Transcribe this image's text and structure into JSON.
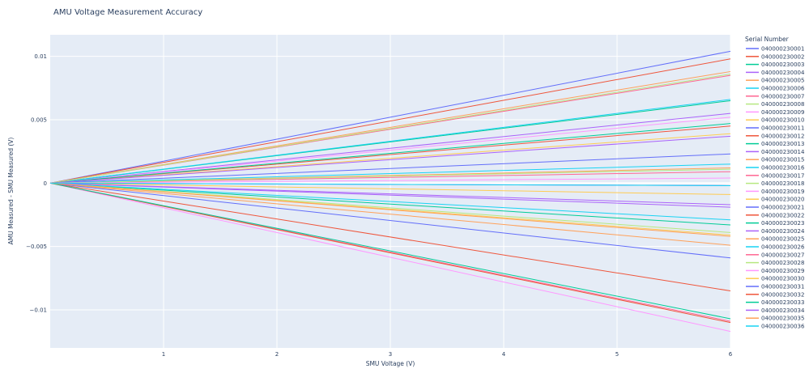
{
  "chart_data": {
    "type": "line",
    "title": "AMU Voltage Measurement Accuracy",
    "xlabel": "SMU Voltage (V)",
    "ylabel": "AMU Measured - SMU Measured (V)",
    "xlim": [
      0,
      6
    ],
    "ylim": [
      -0.013,
      0.0117
    ],
    "x": [
      0,
      6
    ],
    "xticks": [
      1,
      2,
      3,
      4,
      5,
      6
    ],
    "xtick_labels": [
      "1",
      "2",
      "3",
      "4",
      "5",
      "6"
    ],
    "yticks": [
      -0.01,
      -0.005,
      0,
      0.005,
      0.01
    ],
    "ytick_labels": [
      "−0.01",
      "−0.005",
      "0",
      "0.005",
      "0.01"
    ],
    "grid": true,
    "legend_title": "Serial Number",
    "legend_position": "right",
    "series": [
      {
        "name": "040000230001",
        "values": [
          0,
          0.0104
        ],
        "color": "#636efa"
      },
      {
        "name": "040000230002",
        "values": [
          0,
          0.0098
        ],
        "color": "#ef553b"
      },
      {
        "name": "040000230003",
        "values": [
          0,
          0.0065
        ],
        "color": "#00cc96"
      },
      {
        "name": "040000230004",
        "values": [
          0,
          0.0055
        ],
        "color": "#ab63fa"
      },
      {
        "name": "040000230005",
        "values": [
          0,
          0.0088
        ],
        "color": "#ffa15a"
      },
      {
        "name": "040000230006",
        "values": [
          0,
          0.0066
        ],
        "color": "#19d3f3"
      },
      {
        "name": "040000230007",
        "values": [
          0,
          0.0085
        ],
        "color": "#ff6692"
      },
      {
        "name": "040000230008",
        "values": [
          0,
          0.0086
        ],
        "color": "#b6e880"
      },
      {
        "name": "040000230009",
        "values": [
          0,
          0.0052
        ],
        "color": "#ff97ff"
      },
      {
        "name": "040000230010",
        "values": [
          0,
          0.0039
        ],
        "color": "#fecb52"
      },
      {
        "name": "040000230011",
        "values": [
          0,
          0.0023
        ],
        "color": "#636efa"
      },
      {
        "name": "040000230012",
        "values": [
          0,
          0.0045
        ],
        "color": "#ef553b"
      },
      {
        "name": "040000230013",
        "values": [
          0,
          0.0047
        ],
        "color": "#00cc96"
      },
      {
        "name": "040000230014",
        "values": [
          0,
          0.0037
        ],
        "color": "#ab63fa"
      },
      {
        "name": "040000230015",
        "values": [
          0,
          0.0012
        ],
        "color": "#ffa15a"
      },
      {
        "name": "040000230016",
        "values": [
          0,
          0.0015
        ],
        "color": "#19d3f3"
      },
      {
        "name": "040000230017",
        "values": [
          0,
          0.0009
        ],
        "color": "#ff6692"
      },
      {
        "name": "040000230018",
        "values": [
          0,
          0.0011
        ],
        "color": "#b6e880"
      },
      {
        "name": "040000230019",
        "values": [
          0,
          0.0004
        ],
        "color": "#ff97ff"
      },
      {
        "name": "040000230020",
        "values": [
          0,
          -0.0009
        ],
        "color": "#fecb52"
      },
      {
        "name": "040000230021",
        "values": [
          0,
          -0.0002
        ],
        "color": "#636efa"
      },
      {
        "name": "040000230022",
        "values": [
          0,
          -0.0085
        ],
        "color": "#ef553b"
      },
      {
        "name": "040000230023",
        "values": [
          0,
          -0.0033
        ],
        "color": "#00cc96"
      },
      {
        "name": "040000230024",
        "values": [
          0,
          -0.0019
        ],
        "color": "#ab63fa"
      },
      {
        "name": "040000230025",
        "values": [
          0,
          -0.0049
        ],
        "color": "#ffa15a"
      },
      {
        "name": "040000230026",
        "values": [
          0,
          -0.0029
        ],
        "color": "#19d3f3"
      },
      {
        "name": "040000230027",
        "values": [
          0,
          -0.0109
        ],
        "color": "#ff6692"
      },
      {
        "name": "040000230028",
        "values": [
          0,
          -0.0039
        ],
        "color": "#b6e880"
      },
      {
        "name": "040000230029",
        "values": [
          0,
          -0.0117
        ],
        "color": "#ff97ff"
      },
      {
        "name": "040000230030",
        "values": [
          0,
          -0.0041
        ],
        "color": "#fecb52"
      },
      {
        "name": "040000230031",
        "values": [
          0,
          -0.0059
        ],
        "color": "#636efa"
      },
      {
        "name": "040000230032",
        "values": [
          0,
          -0.011
        ],
        "color": "#ef553b"
      },
      {
        "name": "040000230033",
        "values": [
          0,
          -0.0107
        ],
        "color": "#00cc96"
      },
      {
        "name": "040000230034",
        "values": [
          0,
          -0.0017
        ],
        "color": "#ab63fa"
      },
      {
        "name": "040000230035",
        "values": [
          0,
          -0.0042
        ],
        "color": "#ffa15a"
      },
      {
        "name": "040000230036",
        "values": [
          0,
          -0.0002
        ],
        "color": "#19d3f3"
      }
    ]
  },
  "colors": {
    "plot_background": "#e5ecf6",
    "grid": "#ffffff",
    "text": "#2a3f5f"
  }
}
